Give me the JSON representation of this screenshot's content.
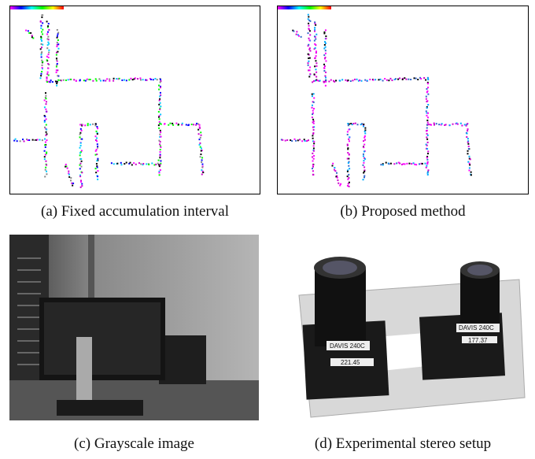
{
  "figure": {
    "panels": [
      {
        "caption": "(a) Fixed accumulation interval"
      },
      {
        "caption": "(b) Proposed method"
      },
      {
        "caption": "(c) Grayscale image"
      },
      {
        "caption": "(d) Experimental stereo setup",
        "labels": [
          "DAVIS 240C",
          "221.45",
          "DAVIS 240C",
          "177.37"
        ]
      }
    ]
  }
}
